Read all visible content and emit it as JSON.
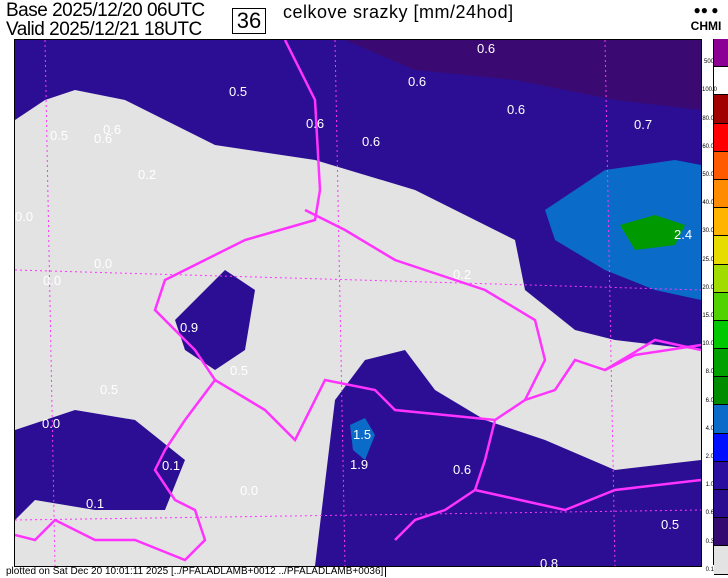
{
  "header": {
    "base_label": "Base",
    "base_time": "2025/12/20 06UTC",
    "valid_label": "Valid",
    "valid_time": "2025/12/21 18UTC",
    "forecast_hour": "36",
    "title": "celkove srazky [mm/24hod]",
    "logo_text": "CHMI"
  },
  "legend": {
    "labels": [
      "500",
      "100.0",
      "80.0",
      "60.0",
      "50.0",
      "40.0",
      "30.0",
      "25.0",
      "20.0",
      "15.0",
      "10.0",
      "8.0",
      "6.0",
      "4.0",
      "2.0",
      "1.0",
      "0.6",
      "0.3",
      "0.1"
    ],
    "colors": [
      "#8c0096",
      "#ffffff",
      "#a00000",
      "#ff0000",
      "#ff5a00",
      "#ff8c00",
      "#ffb400",
      "#e6dc00",
      "#a0dc00",
      "#50d200",
      "#00c800",
      "#00a000",
      "#008c00",
      "#0a6cc8",
      "#0010ff",
      "#2a0ea0",
      "#2a0c90",
      "#350a70",
      "#e3e3e3"
    ]
  },
  "map_labels": [
    "0.6",
    "0.5",
    "0.6",
    "0.6",
    "0.6",
    "0.6",
    "0.7",
    "0.5",
    "0.6",
    "0.6",
    "0.2",
    "0.0",
    "0.0",
    "0.0",
    "2.4",
    "0.2",
    "0.9",
    "0.5",
    "1.5",
    "1.9",
    "0.6",
    "0.0",
    "0.5",
    "0.1",
    "0.1",
    "0.0",
    "0.5",
    "0.8"
  ],
  "footer": "plotted on Sat Dec 20 10:01:11 2025 [../PFALADLAMB+0012 ../PFALADLAMB+0036]"
}
